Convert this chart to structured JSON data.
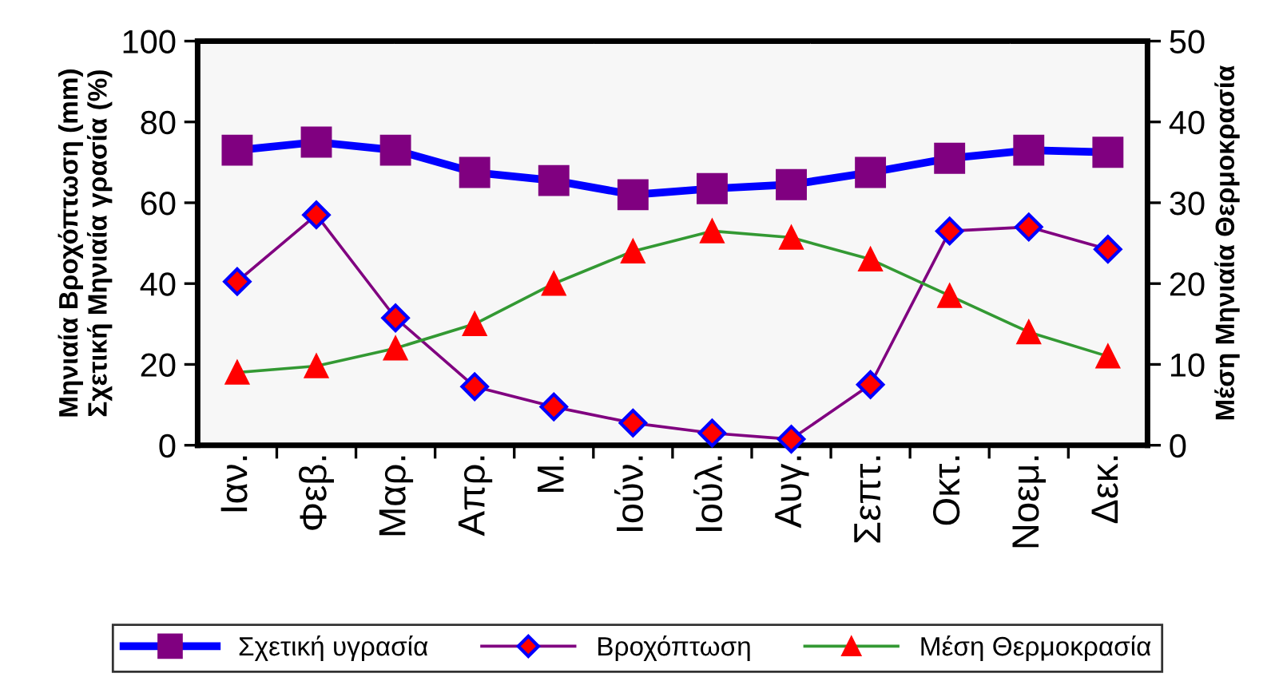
{
  "chart_data": {
    "type": "line",
    "ylabel": "Μηνιαία Βροχόπτωση (mm)\nΣχετική Μηνιαία γρασία (%)",
    "y2label": "Μέση Μηνιαία Θερμοκρασία",
    "categories": [
      "Ιαν.",
      "Φεβ.",
      "Μαρ.",
      "Απρ.",
      "Μ.",
      "Ιούν.",
      "Ιούλ.",
      "Αυγ.",
      "Σεπτ.",
      "Οκτ.",
      "Νοεμ.",
      "Δεκ."
    ],
    "series": [
      {
        "name": "Σχετική υγρασία",
        "color": "#0000ff",
        "marker": "square",
        "values": [
          73,
          75,
          73,
          67.5,
          65.5,
          62,
          63.5,
          64.5,
          67.5,
          71,
          73,
          72.5
        ]
      },
      {
        "name": "Βροχόπτωση",
        "color": "#800080",
        "marker": "diamond",
        "values": [
          40.5,
          57,
          31.5,
          14.5,
          9.5,
          5.5,
          3,
          1.5,
          15,
          53,
          54,
          48.5
        ]
      },
      {
        "name": "Μέση Θερμοκρασία",
        "color": "#339933",
        "marker": "triangle",
        "axis": "y2",
        "values": [
          9,
          9.8,
          12,
          15,
          20,
          24,
          26.5,
          25.7,
          23,
          18.5,
          14,
          11
        ]
      }
    ],
    "ylim": [
      0,
      100
    ],
    "yticks": [
      0,
      20,
      40,
      60,
      80,
      100
    ],
    "y2lim": [
      0,
      50
    ],
    "y2ticks": [
      0,
      10,
      20,
      30,
      40,
      50
    ],
    "grid": false,
    "legend": "bottom"
  }
}
